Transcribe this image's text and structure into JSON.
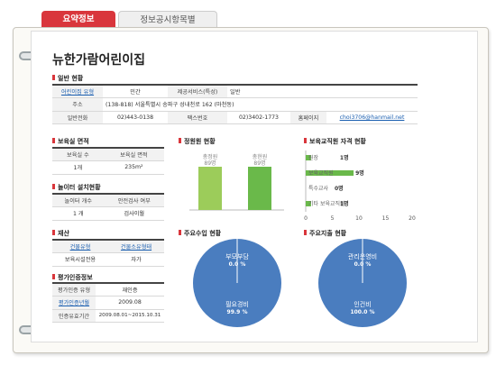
{
  "tabs": {
    "active": "요약정보",
    "inactive": "정보공시항목별"
  },
  "center_name": "뉴한가람어린이집",
  "general": {
    "title": "일반 현황",
    "type_label": "어린이집 유형",
    "type_value": "민간",
    "service_label": "제공서비스(특성)",
    "service_value": "일반",
    "addr_label": "주소",
    "addr_value": "(138-818) 서울특별시 송파구 성내천로 162 (마천동)",
    "tel_label": "일반전화",
    "tel_value": "02)443-0138",
    "fax_label": "팩스번호",
    "fax_value": "02)3402-1773",
    "home_label": "홈페이지",
    "home_value": "choi3706@hanmail.net"
  },
  "room": {
    "title": "보육실 면적",
    "h1": "보육실 수",
    "h2": "보육실 면적",
    "v1": "1개",
    "v2": "235m²"
  },
  "playground": {
    "title": "놀이터 설치현황",
    "h1": "놀이터 개수",
    "h2": "안전검사 여부",
    "v1": "1 개",
    "v2": "검사이월"
  },
  "property": {
    "title": "재산",
    "h1": "건물유형",
    "h2": "건물소유형태",
    "v1": "보육시설전용",
    "v2": "자가"
  },
  "cert": {
    "title": "평가인증정보",
    "r1_label": "평가인증 유형",
    "r1_value": "재인증",
    "r2_label": "평가인증년월",
    "r2_value": "2009.08",
    "r3_label": "인증유효기간",
    "r3_value": "2009.08.01~2015.10.31"
  },
  "colors": {
    "accent": "#d9363c",
    "green": "#6ab94a",
    "blue": "#4a7dbf",
    "link": "#1b5fb0"
  },
  "chart_data": [
    {
      "type": "bar",
      "title": "정원원 현황",
      "categories": [
        "총정원",
        "총현원"
      ],
      "values": [
        89,
        89
      ],
      "data_labels": [
        "89명",
        "89명"
      ]
    },
    {
      "type": "bar",
      "orientation": "horizontal",
      "title": "보육교직원 자격 현황",
      "categories": [
        "원장",
        "보육교직원",
        "특수교사",
        "기타 보육교직원"
      ],
      "values": [
        1,
        9,
        0,
        1
      ],
      "data_labels": [
        "1명",
        "9명",
        "0명",
        "1명"
      ],
      "xticks": [
        "0",
        "5",
        "10",
        "15",
        "20"
      ],
      "xlim": [
        0,
        20
      ]
    },
    {
      "type": "pie",
      "title": "주요수입 현황",
      "slices": [
        {
          "label": "부모부담",
          "pct": "0.0 %",
          "value": 0.0
        },
        {
          "label": "필요경비",
          "pct": "99.9 %",
          "value": 99.9
        }
      ]
    },
    {
      "type": "pie",
      "title": "주요지출 현황",
      "slices": [
        {
          "label": "관리운영비",
          "pct": "0.0 %",
          "value": 0.0
        },
        {
          "label": "인건비",
          "pct": "100.0 %",
          "value": 100.0
        }
      ]
    }
  ]
}
